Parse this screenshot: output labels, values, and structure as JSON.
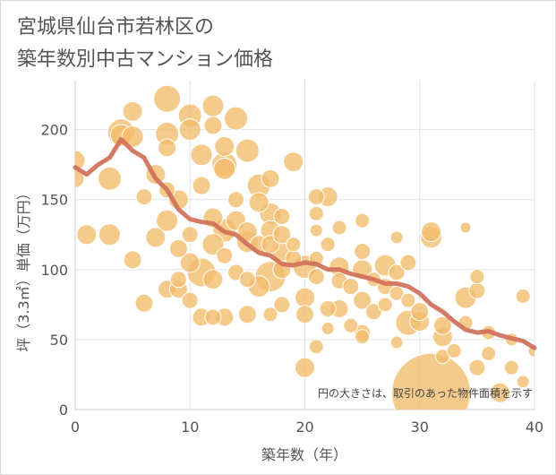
{
  "title_lines": [
    "宮城県仙台市若林区の",
    "築年数別中古マンション価格"
  ],
  "chart_data": {
    "type": "scatter",
    "title": "宮城県仙台市若林区の 築年数別中古マンション価格",
    "xlabel": "築年数（年）",
    "ylabel": "坪（3.3㎡）単価（万円）",
    "xlim": [
      0,
      40
    ],
    "ylim": [
      0,
      235
    ],
    "xticks": [
      0,
      10,
      20,
      30,
      40
    ],
    "yticks": [
      0,
      50,
      100,
      150,
      200
    ],
    "grid": true,
    "annotation": "円の大きさは、取引のあった物件面積を示す",
    "colors": {
      "bubble": "#f2bd6b",
      "bubble_edge": "#ffffff",
      "trend": "#d0705a",
      "grid": "#dfe3e8",
      "axis": "#cccccc"
    },
    "series": [
      {
        "kind": "bubble",
        "points": [
          {
            "x": 0,
            "y": 178,
            "s": 11
          },
          {
            "x": 0,
            "y": 165,
            "s": 10
          },
          {
            "x": 1,
            "y": 125,
            "s": 11
          },
          {
            "x": 3,
            "y": 125,
            "s": 12
          },
          {
            "x": 3,
            "y": 165,
            "s": 13
          },
          {
            "x": 4,
            "y": 198,
            "s": 15
          },
          {
            "x": 4,
            "y": 196,
            "s": 12
          },
          {
            "x": 5,
            "y": 213,
            "s": 11
          },
          {
            "x": 5,
            "y": 195,
            "s": 12
          },
          {
            "x": 5,
            "y": 107,
            "s": 10
          },
          {
            "x": 6,
            "y": 152,
            "s": 9
          },
          {
            "x": 6,
            "y": 76,
            "s": 10
          },
          {
            "x": 7,
            "y": 168,
            "s": 11
          },
          {
            "x": 7,
            "y": 123,
            "s": 11
          },
          {
            "x": 8,
            "y": 222,
            "s": 15
          },
          {
            "x": 8,
            "y": 197,
            "s": 13
          },
          {
            "x": 8,
            "y": 187,
            "s": 10
          },
          {
            "x": 8,
            "y": 157,
            "s": 9
          },
          {
            "x": 8,
            "y": 135,
            "s": 12
          },
          {
            "x": 8,
            "y": 86,
            "s": 10
          },
          {
            "x": 9,
            "y": 150,
            "s": 11
          },
          {
            "x": 9,
            "y": 115,
            "s": 10
          },
          {
            "x": 9,
            "y": 93,
            "s": 9
          },
          {
            "x": 9,
            "y": 86,
            "s": 10
          },
          {
            "x": 10,
            "y": 210,
            "s": 13
          },
          {
            "x": 10,
            "y": 200,
            "s": 12
          },
          {
            "x": 10,
            "y": 125,
            "s": 9
          },
          {
            "x": 10,
            "y": 105,
            "s": 11
          },
          {
            "x": 10,
            "y": 78,
            "s": 9
          },
          {
            "x": 11,
            "y": 182,
            "s": 12
          },
          {
            "x": 11,
            "y": 160,
            "s": 10
          },
          {
            "x": 11,
            "y": 98,
            "s": 16
          },
          {
            "x": 11,
            "y": 66,
            "s": 10
          },
          {
            "x": 12,
            "y": 217,
            "s": 12
          },
          {
            "x": 12,
            "y": 203,
            "s": 10
          },
          {
            "x": 12,
            "y": 137,
            "s": 11
          },
          {
            "x": 12,
            "y": 118,
            "s": 12
          },
          {
            "x": 12,
            "y": 93,
            "s": 11
          },
          {
            "x": 12,
            "y": 66,
            "s": 9
          },
          {
            "x": 13,
            "y": 188,
            "s": 11
          },
          {
            "x": 13,
            "y": 175,
            "s": 14
          },
          {
            "x": 13,
            "y": 172,
            "s": 12
          },
          {
            "x": 13,
            "y": 128,
            "s": 13
          },
          {
            "x": 13,
            "y": 110,
            "s": 9
          },
          {
            "x": 13,
            "y": 66,
            "s": 10
          },
          {
            "x": 14,
            "y": 208,
            "s": 13
          },
          {
            "x": 14,
            "y": 150,
            "s": 9
          },
          {
            "x": 14,
            "y": 135,
            "s": 11
          },
          {
            "x": 14,
            "y": 98,
            "s": 9
          },
          {
            "x": 15,
            "y": 185,
            "s": 13
          },
          {
            "x": 15,
            "y": 127,
            "s": 11
          },
          {
            "x": 15,
            "y": 120,
            "s": 12
          },
          {
            "x": 15,
            "y": 93,
            "s": 9
          },
          {
            "x": 15,
            "y": 68,
            "s": 10
          },
          {
            "x": 16,
            "y": 160,
            "s": 13
          },
          {
            "x": 16,
            "y": 148,
            "s": 11
          },
          {
            "x": 16,
            "y": 118,
            "s": 10
          },
          {
            "x": 16,
            "y": 88,
            "s": 12
          },
          {
            "x": 17,
            "y": 165,
            "s": 10
          },
          {
            "x": 17,
            "y": 140,
            "s": 12
          },
          {
            "x": 17,
            "y": 128,
            "s": 11
          },
          {
            "x": 17,
            "y": 118,
            "s": 10
          },
          {
            "x": 17,
            "y": 95,
            "s": 17
          },
          {
            "x": 17,
            "y": 68,
            "s": 8
          },
          {
            "x": 18,
            "y": 138,
            "s": 9
          },
          {
            "x": 18,
            "y": 125,
            "s": 10
          },
          {
            "x": 18,
            "y": 112,
            "s": 11
          },
          {
            "x": 18,
            "y": 100,
            "s": 10
          },
          {
            "x": 18,
            "y": 75,
            "s": 9
          },
          {
            "x": 19,
            "y": 177,
            "s": 11
          },
          {
            "x": 19,
            "y": 118,
            "s": 8
          },
          {
            "x": 19,
            "y": 108,
            "s": 9
          },
          {
            "x": 20,
            "y": 102,
            "s": 13
          },
          {
            "x": 20,
            "y": 80,
            "s": 11
          },
          {
            "x": 20,
            "y": 68,
            "s": 10
          },
          {
            "x": 20,
            "y": 30,
            "s": 11
          },
          {
            "x": 21,
            "y": 152,
            "s": 9
          },
          {
            "x": 21,
            "y": 140,
            "s": 8
          },
          {
            "x": 21,
            "y": 128,
            "s": 7
          },
          {
            "x": 21,
            "y": 108,
            "s": 8
          },
          {
            "x": 21,
            "y": 95,
            "s": 9
          },
          {
            "x": 21,
            "y": 45,
            "s": 8
          },
          {
            "x": 22,
            "y": 152,
            "s": 11
          },
          {
            "x": 22,
            "y": 118,
            "s": 8
          },
          {
            "x": 22,
            "y": 72,
            "s": 9
          },
          {
            "x": 22,
            "y": 58,
            "s": 7
          },
          {
            "x": 23,
            "y": 130,
            "s": 8
          },
          {
            "x": 23,
            "y": 102,
            "s": 11
          },
          {
            "x": 23,
            "y": 92,
            "s": 9
          },
          {
            "x": 23,
            "y": 72,
            "s": 10
          },
          {
            "x": 24,
            "y": 88,
            "s": 9
          },
          {
            "x": 24,
            "y": 60,
            "s": 8
          },
          {
            "x": 25,
            "y": 135,
            "s": 8
          },
          {
            "x": 25,
            "y": 113,
            "s": 9
          },
          {
            "x": 25,
            "y": 100,
            "s": 11
          },
          {
            "x": 25,
            "y": 78,
            "s": 10
          },
          {
            "x": 25,
            "y": 55,
            "s": 9
          },
          {
            "x": 25,
            "y": 52,
            "s": 8
          },
          {
            "x": 26,
            "y": 93,
            "s": 8
          },
          {
            "x": 26,
            "y": 70,
            "s": 9
          },
          {
            "x": 27,
            "y": 103,
            "s": 12
          },
          {
            "x": 27,
            "y": 88,
            "s": 9
          },
          {
            "x": 27,
            "y": 75,
            "s": 8
          },
          {
            "x": 28,
            "y": 123,
            "s": 7
          },
          {
            "x": 28,
            "y": 98,
            "s": 9
          },
          {
            "x": 28,
            "y": 83,
            "s": 8
          },
          {
            "x": 28,
            "y": 48,
            "s": 7
          },
          {
            "x": 29,
            "y": 105,
            "s": 9
          },
          {
            "x": 29,
            "y": 78,
            "s": 8
          },
          {
            "x": 29,
            "y": 62,
            "s": 14
          },
          {
            "x": 30,
            "y": 70,
            "s": 10
          },
          {
            "x": 30,
            "y": 63,
            "s": 11
          },
          {
            "x": 31,
            "y": 127,
            "s": 11
          },
          {
            "x": 31,
            "y": 123,
            "s": 12
          },
          {
            "x": 31,
            "y": 12,
            "s": 44
          },
          {
            "x": 32,
            "y": 60,
            "s": 10
          },
          {
            "x": 32,
            "y": 52,
            "s": 11
          },
          {
            "x": 32,
            "y": 38,
            "s": 8
          },
          {
            "x": 33,
            "y": 42,
            "s": 8
          },
          {
            "x": 34,
            "y": 130,
            "s": 6
          },
          {
            "x": 34,
            "y": 80,
            "s": 12
          },
          {
            "x": 34,
            "y": 62,
            "s": 8
          },
          {
            "x": 35,
            "y": 95,
            "s": 8
          },
          {
            "x": 35,
            "y": 85,
            "s": 9
          },
          {
            "x": 35,
            "y": 30,
            "s": 9
          },
          {
            "x": 36,
            "y": 55,
            "s": 8
          },
          {
            "x": 36,
            "y": 40,
            "s": 8
          },
          {
            "x": 37,
            "y": 12,
            "s": 11
          },
          {
            "x": 38,
            "y": 50,
            "s": 7
          },
          {
            "x": 38,
            "y": 30,
            "s": 8
          },
          {
            "x": 39,
            "y": 81,
            "s": 8
          },
          {
            "x": 39,
            "y": 20,
            "s": 7
          },
          {
            "x": 40,
            "y": 42,
            "s": 7
          }
        ]
      },
      {
        "kind": "line",
        "points": [
          {
            "x": 0,
            "y": 173
          },
          {
            "x": 1,
            "y": 168
          },
          {
            "x": 2,
            "y": 175
          },
          {
            "x": 3,
            "y": 180
          },
          {
            "x": 4,
            "y": 193
          },
          {
            "x": 5,
            "y": 185
          },
          {
            "x": 6,
            "y": 180
          },
          {
            "x": 7,
            "y": 165
          },
          {
            "x": 8,
            "y": 157
          },
          {
            "x": 9,
            "y": 143
          },
          {
            "x": 10,
            "y": 136
          },
          {
            "x": 11,
            "y": 134
          },
          {
            "x": 12,
            "y": 133
          },
          {
            "x": 13,
            "y": 127
          },
          {
            "x": 14,
            "y": 125
          },
          {
            "x": 15,
            "y": 118
          },
          {
            "x": 16,
            "y": 112
          },
          {
            "x": 17,
            "y": 110
          },
          {
            "x": 18,
            "y": 104
          },
          {
            "x": 19,
            "y": 103
          },
          {
            "x": 20,
            "y": 105
          },
          {
            "x": 21,
            "y": 104
          },
          {
            "x": 22,
            "y": 100
          },
          {
            "x": 23,
            "y": 100
          },
          {
            "x": 24,
            "y": 97
          },
          {
            "x": 25,
            "y": 95
          },
          {
            "x": 26,
            "y": 93
          },
          {
            "x": 27,
            "y": 90
          },
          {
            "x": 28,
            "y": 90
          },
          {
            "x": 29,
            "y": 88
          },
          {
            "x": 30,
            "y": 83
          },
          {
            "x": 31,
            "y": 75
          },
          {
            "x": 32,
            "y": 70
          },
          {
            "x": 33,
            "y": 63
          },
          {
            "x": 34,
            "y": 57
          },
          {
            "x": 35,
            "y": 55
          },
          {
            "x": 36,
            "y": 56
          },
          {
            "x": 37,
            "y": 53
          },
          {
            "x": 38,
            "y": 51
          },
          {
            "x": 39,
            "y": 49
          },
          {
            "x": 40,
            "y": 44
          }
        ]
      }
    ]
  }
}
